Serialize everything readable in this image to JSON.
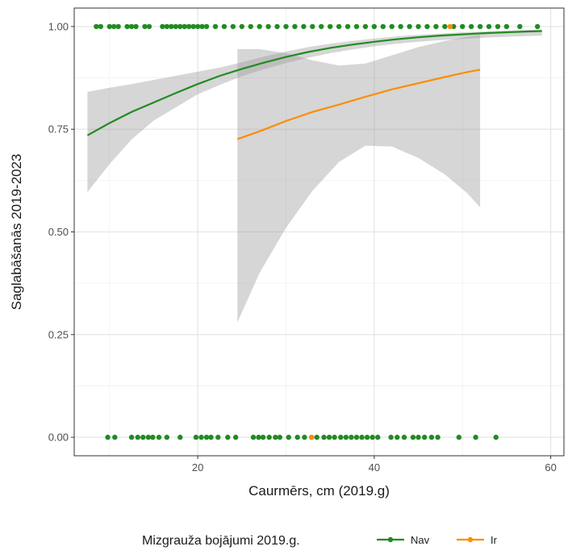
{
  "chart_data": {
    "type": "scatter",
    "xlabel": "Caurmērs, cm (2019.g)",
    "ylabel": "Saglabāšanās 2019-2023",
    "xlim": [
      6,
      61.5
    ],
    "ylim": [
      -0.045,
      1.045
    ],
    "x_ticks": [
      20,
      40,
      60
    ],
    "y_ticks": [
      0.0,
      0.25,
      0.5,
      0.75,
      1.0
    ],
    "x_tick_labels": [
      "20",
      "40",
      "60"
    ],
    "y_tick_labels": [
      "0.00",
      "0.25",
      "0.50",
      "0.75",
      "1.00"
    ],
    "grid": true,
    "legend": {
      "title": "Mizgrauža bojājumi 2019.g.",
      "position": "bottom",
      "entries": [
        "Nav",
        "Ir"
      ]
    },
    "series": [
      {
        "name": "Nav",
        "color": "#228B22",
        "points_y1": [
          8.5,
          9,
          10,
          10.5,
          11,
          12,
          12.5,
          13,
          14,
          14.5,
          16,
          16.5,
          17,
          17.5,
          18,
          18.5,
          19,
          19.5,
          20,
          20.5,
          21,
          22,
          23,
          24,
          25,
          26,
          27,
          28,
          29,
          30,
          31,
          32,
          33,
          34,
          35,
          36,
          37,
          38,
          39,
          40,
          41,
          42,
          43,
          44,
          45,
          46,
          47,
          48,
          49,
          50,
          51,
          52,
          53,
          54,
          55,
          56.5,
          58.5
        ],
        "points_y0": [
          9.8,
          10.6,
          12.5,
          13.2,
          13.8,
          14.4,
          14.9,
          15.6,
          16.5,
          18,
          19.8,
          20.4,
          21,
          21.5,
          22.3,
          23.4,
          24.3,
          26.3,
          26.9,
          27.4,
          28.1,
          28.8,
          29.3,
          30.3,
          31.3,
          32.1,
          32.9,
          33.5,
          34.3,
          34.9,
          35.5,
          36.2,
          36.8,
          37.4,
          38,
          38.6,
          39.2,
          39.8,
          40.4,
          41.9,
          42.6,
          43.4,
          44.4,
          45,
          45.7,
          46.5,
          47.2,
          49.6,
          51.5,
          53.8
        ],
        "fit": {
          "x": [
            7.5,
            10,
            12.5,
            15,
            17.5,
            20,
            22.5,
            25,
            27.5,
            30,
            32.5,
            35,
            37.5,
            40,
            42.5,
            45,
            47.5,
            50,
            52.5,
            55,
            57.5,
            59
          ],
          "y": [
            0.735,
            0.765,
            0.792,
            0.815,
            0.838,
            0.86,
            0.88,
            0.897,
            0.912,
            0.926,
            0.938,
            0.948,
            0.956,
            0.963,
            0.969,
            0.974,
            0.978,
            0.981,
            0.984,
            0.986,
            0.988,
            0.989
          ],
          "lower": [
            0.597,
            0.665,
            0.725,
            0.771,
            0.803,
            0.835,
            0.858,
            0.879,
            0.896,
            0.911,
            0.924,
            0.935,
            0.944,
            0.952,
            0.958,
            0.963,
            0.967,
            0.97,
            0.973,
            0.975,
            0.977,
            0.978
          ],
          "upper": [
            0.841,
            0.851,
            0.86,
            0.87,
            0.88,
            0.89,
            0.9,
            0.913,
            0.927,
            0.939,
            0.95,
            0.958,
            0.965,
            0.971,
            0.976,
            0.98,
            0.983,
            0.986,
            0.988,
            0.99,
            0.992,
            0.993
          ]
        }
      },
      {
        "name": "Ir",
        "color": "#FF8C00",
        "points_y1": [
          48.6
        ],
        "points_y0": [
          32.9
        ],
        "fit": {
          "x": [
            24.5,
            27,
            30,
            33,
            36,
            39,
            42,
            45,
            48,
            50.5,
            52
          ],
          "y": [
            0.726,
            0.745,
            0.77,
            0.792,
            0.81,
            0.829,
            0.847,
            0.862,
            0.877,
            0.889,
            0.895
          ],
          "lower": [
            0.28,
            0.4,
            0.51,
            0.6,
            0.67,
            0.71,
            0.708,
            0.68,
            0.64,
            0.595,
            0.56
          ],
          "upper": [
            0.945,
            0.945,
            0.935,
            0.918,
            0.905,
            0.91,
            0.93,
            0.95,
            0.965,
            0.975,
            0.98
          ]
        }
      }
    ]
  }
}
